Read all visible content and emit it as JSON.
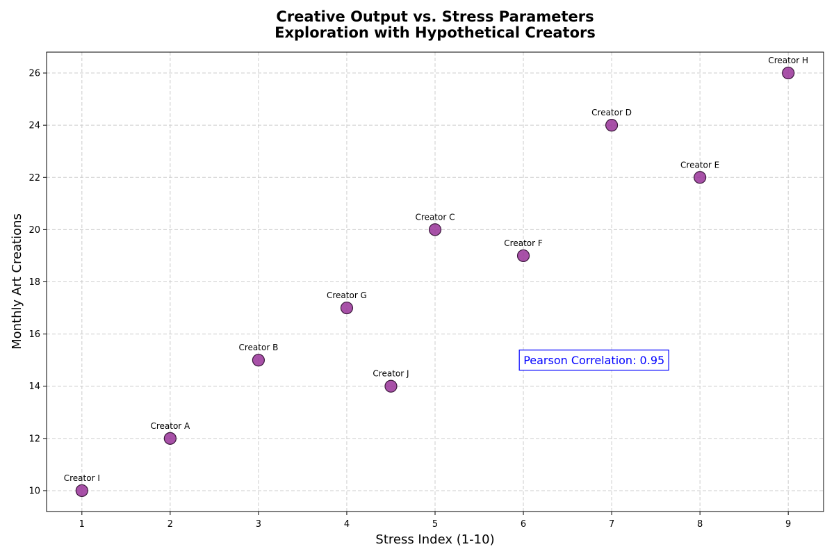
{
  "chart_data": {
    "type": "scatter",
    "title": "Creative Output vs. Stress Parameters",
    "subtitle": "Exploration with Hypothetical Creators",
    "xlabel": "Stress Index (1-10)",
    "ylabel": "Monthly Art Creations",
    "xlim": [
      0.6,
      9.4
    ],
    "ylim": [
      9.2,
      26.8
    ],
    "xticks": [
      1,
      2,
      3,
      4,
      5,
      6,
      7,
      8,
      9
    ],
    "yticks": [
      10,
      12,
      14,
      16,
      18,
      20,
      22,
      24,
      26
    ],
    "grid": true,
    "points": [
      {
        "label": "Creator A",
        "x": 2,
        "y": 12
      },
      {
        "label": "Creator B",
        "x": 3,
        "y": 15
      },
      {
        "label": "Creator C",
        "x": 5,
        "y": 20
      },
      {
        "label": "Creator D",
        "x": 7,
        "y": 24
      },
      {
        "label": "Creator E",
        "x": 8,
        "y": 22
      },
      {
        "label": "Creator F",
        "x": 6,
        "y": 19
      },
      {
        "label": "Creator G",
        "x": 4,
        "y": 17
      },
      {
        "label": "Creator H",
        "x": 9,
        "y": 26
      },
      {
        "label": "Creator I",
        "x": 1,
        "y": 10
      },
      {
        "label": "Creator J",
        "x": 4.5,
        "y": 14
      }
    ],
    "annotation": {
      "text": "Pearson Correlation: 0.95",
      "x": 6.8,
      "y": 15,
      "color": "#0000ff"
    },
    "colors": {
      "marker_fill": "#993399",
      "marker_edge": "#3a183a",
      "grid": "#cccccc"
    }
  }
}
